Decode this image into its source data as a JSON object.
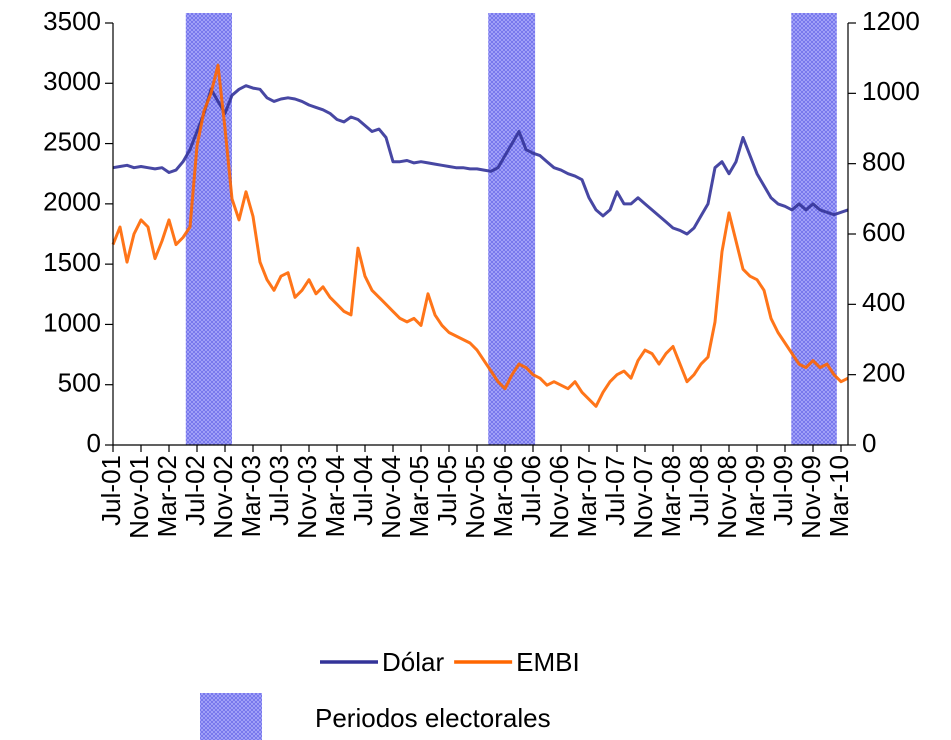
{
  "chart_data": {
    "type": "line",
    "x": [
      0,
      1,
      2,
      3,
      4,
      5,
      6,
      7,
      8,
      9,
      10,
      11,
      12,
      13,
      14,
      15,
      16,
      17,
      18,
      19,
      20,
      21,
      22,
      23,
      24,
      25,
      26,
      27,
      28,
      29,
      30,
      31,
      32,
      33,
      34,
      35,
      36,
      37,
      38,
      39,
      40,
      41,
      42,
      43,
      44,
      45,
      46,
      47,
      48,
      49,
      50,
      51,
      52,
      53,
      54,
      55,
      56,
      57,
      58,
      59,
      60,
      61,
      62,
      63,
      64,
      65,
      66,
      67,
      68,
      69,
      70,
      71,
      72,
      73,
      74,
      75,
      76,
      77,
      78,
      79,
      80,
      81,
      82,
      83,
      84,
      85,
      86,
      87,
      88,
      89,
      90,
      91,
      92,
      93,
      94,
      95,
      96,
      97,
      98,
      99,
      100,
      101,
      102,
      103,
      104,
      105
    ],
    "xlim": [
      0,
      105
    ],
    "xticks": [
      {
        "value": 0,
        "label": "Jul-01"
      },
      {
        "value": 4,
        "label": "Nov-01"
      },
      {
        "value": 8,
        "label": "Mar-02"
      },
      {
        "value": 12,
        "label": "Jul-02"
      },
      {
        "value": 16,
        "label": "Nov-02"
      },
      {
        "value": 20,
        "label": "Mar-03"
      },
      {
        "value": 24,
        "label": "Jul-03"
      },
      {
        "value": 28,
        "label": "Nov-03"
      },
      {
        "value": 32,
        "label": "Mar-04"
      },
      {
        "value": 36,
        "label": "Jul-04"
      },
      {
        "value": 40,
        "label": "Nov-04"
      },
      {
        "value": 44,
        "label": "Mar-05"
      },
      {
        "value": 48,
        "label": "Jul-05"
      },
      {
        "value": 52,
        "label": "Nov-05"
      },
      {
        "value": 56,
        "label": "Mar-06"
      },
      {
        "value": 60,
        "label": "Jul-06"
      },
      {
        "value": 64,
        "label": "Nov-06"
      },
      {
        "value": 68,
        "label": "Mar-07"
      },
      {
        "value": 72,
        "label": "Jul-07"
      },
      {
        "value": 76,
        "label": "Nov-07"
      },
      {
        "value": 80,
        "label": "Mar-08"
      },
      {
        "value": 84,
        "label": "Jul-08"
      },
      {
        "value": 88,
        "label": "Nov-08"
      },
      {
        "value": 92,
        "label": "Mar-09"
      },
      {
        "value": 96,
        "label": "Jul-09"
      },
      {
        "value": 100,
        "label": "Nov-09"
      },
      {
        "value": 104,
        "label": "Mar-10"
      }
    ],
    "ylim": [
      0,
      3500
    ],
    "yticks": [
      0,
      500,
      1000,
      1500,
      2000,
      2500,
      3000,
      3500
    ],
    "y2lim": [
      0,
      1200
    ],
    "y2ticks": [
      0,
      200,
      400,
      600,
      800,
      1000,
      1200
    ],
    "legend": "bottom",
    "series": [
      {
        "name": "Dólar",
        "color": "#333399",
        "axis": "y",
        "values": [
          2300,
          2310,
          2320,
          2300,
          2310,
          2300,
          2290,
          2300,
          2260,
          2280,
          2350,
          2450,
          2600,
          2750,
          2950,
          2850,
          2750,
          2900,
          2950,
          2980,
          2960,
          2950,
          2880,
          2850,
          2870,
          2880,
          2870,
          2850,
          2820,
          2800,
          2780,
          2750,
          2700,
          2680,
          2720,
          2700,
          2650,
          2600,
          2620,
          2550,
          2350,
          2350,
          2360,
          2340,
          2350,
          2340,
          2330,
          2320,
          2310,
          2300,
          2300,
          2290,
          2290,
          2280,
          2270,
          2300,
          2400,
          2500,
          2600,
          2450,
          2420,
          2400,
          2350,
          2300,
          2280,
          2250,
          2230,
          2200,
          2050,
          1950,
          1900,
          1950,
          2100,
          2000,
          2000,
          2050,
          2000,
          1950,
          1900,
          1850,
          1800,
          1780,
          1750,
          1800,
          1900,
          2000,
          2300,
          2350,
          2250,
          2350,
          2550,
          2400,
          2250,
          2150,
          2050,
          2000,
          1980,
          1950,
          2000,
          1950,
          2000,
          1950,
          1930,
          1910,
          1930,
          1950
        ]
      },
      {
        "name": "EMBI",
        "color": "#ff6600",
        "axis": "y2",
        "values": [
          570,
          620,
          520,
          600,
          640,
          620,
          530,
          580,
          640,
          570,
          590,
          620,
          850,
          950,
          1000,
          1080,
          900,
          700,
          640,
          720,
          650,
          520,
          470,
          440,
          480,
          490,
          420,
          440,
          470,
          430,
          450,
          420,
          400,
          380,
          370,
          560,
          480,
          440,
          420,
          400,
          380,
          360,
          350,
          360,
          340,
          430,
          370,
          340,
          320,
          310,
          300,
          290,
          270,
          240,
          210,
          180,
          160,
          200,
          230,
          220,
          200,
          190,
          170,
          180,
          170,
          160,
          180,
          150,
          130,
          110,
          150,
          180,
          200,
          210,
          190,
          240,
          270,
          260,
          230,
          260,
          280,
          230,
          180,
          200,
          230,
          250,
          350,
          550,
          660,
          580,
          500,
          480,
          470,
          440,
          360,
          320,
          290,
          260,
          230,
          220,
          240,
          220,
          230,
          200,
          180,
          190
        ]
      }
    ],
    "bands": {
      "name": "Periodos electorales",
      "color": "#5a5ae6",
      "ranges": [
        [
          10.4,
          17
        ],
        [
          53.6,
          60.3
        ],
        [
          96.9,
          103.4
        ]
      ]
    }
  }
}
